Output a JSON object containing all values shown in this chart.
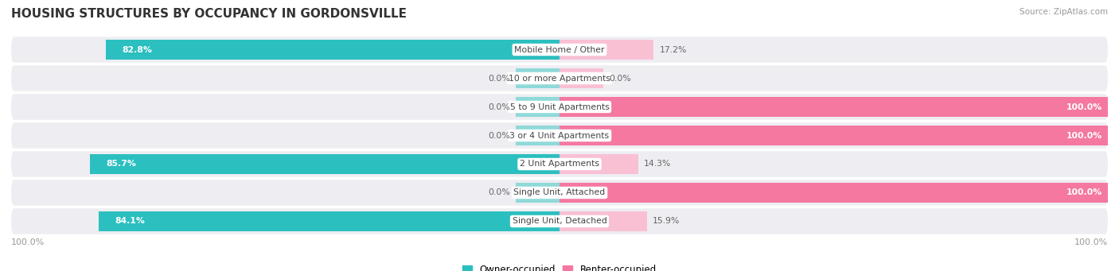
{
  "title": "HOUSING STRUCTURES BY OCCUPANCY IN GORDONSVILLE",
  "source": "Source: ZipAtlas.com",
  "categories": [
    "Single Unit, Detached",
    "Single Unit, Attached",
    "2 Unit Apartments",
    "3 or 4 Unit Apartments",
    "5 to 9 Unit Apartments",
    "10 or more Apartments",
    "Mobile Home / Other"
  ],
  "owner_pct": [
    84.1,
    0.0,
    85.7,
    0.0,
    0.0,
    0.0,
    82.8
  ],
  "renter_pct": [
    15.9,
    100.0,
    14.3,
    100.0,
    100.0,
    0.0,
    17.2
  ],
  "owner_color": "#2bbfbf",
  "renter_color": "#f478a0",
  "owner_color_light": "#90d9d9",
  "renter_color_light": "#f9c0d4",
  "bg_row_color": "#ededf2",
  "bg_gap_color": "#ffffff",
  "title_fontsize": 11,
  "bar_height": 0.72,
  "figsize": [
    14.06,
    3.41
  ],
  "dpi": 100,
  "x_left_label": "100.0%",
  "x_right_label": "100.0%",
  "owner_stub_pct": 8,
  "renter_stub_pct": 8
}
